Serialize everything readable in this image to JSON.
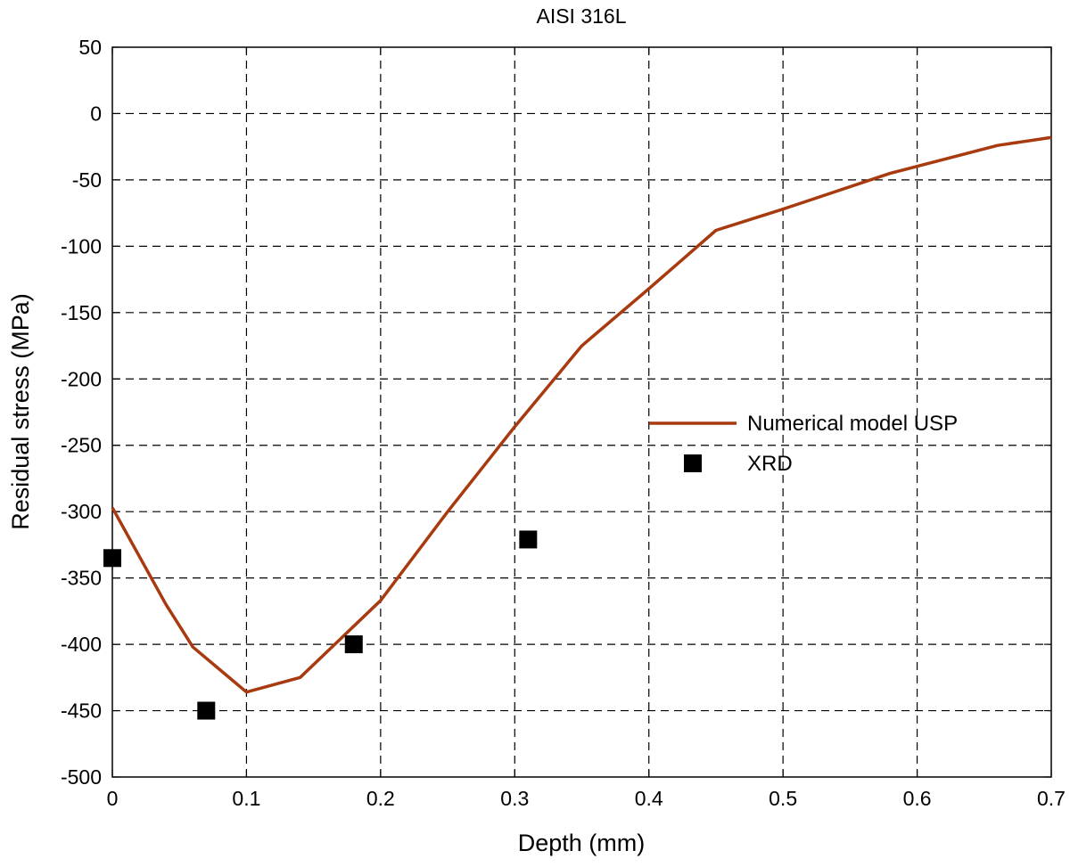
{
  "chart_data": {
    "type": "line",
    "title": "AISI 316L",
    "xlabel": "Depth (mm)",
    "ylabel": "Residual stress (MPa)",
    "xlim": [
      0,
      0.7
    ],
    "ylim": [
      -500,
      50
    ],
    "x_ticks": [
      0,
      0.1,
      0.2,
      0.3,
      0.4,
      0.5,
      0.6,
      0.7
    ],
    "x_tick_labels": [
      "0",
      "0.1",
      "0.2",
      "0.3",
      "0.4",
      "0.5",
      "0.6",
      "0.7"
    ],
    "y_ticks": [
      50,
      0,
      -50,
      -100,
      -150,
      -200,
      -250,
      -300,
      -350,
      -400,
      -450,
      -500
    ],
    "y_tick_labels": [
      "50",
      "0",
      "-50",
      "-100",
      "-150",
      "-200",
      "-250",
      "-300",
      "-350",
      "-400",
      "-450",
      "-500"
    ],
    "grid": true,
    "grid_style": "dashed",
    "legend_position": "right",
    "series": [
      {
        "name": "Numerical model USP",
        "kind": "line",
        "color": "#a83a0f",
        "x": [
          0,
          0.04,
          0.06,
          0.1,
          0.14,
          0.2,
          0.25,
          0.3,
          0.35,
          0.4,
          0.45,
          0.5,
          0.58,
          0.66,
          0.7
        ],
        "y": [
          -297,
          -370,
          -402,
          -436,
          -425,
          -367,
          -300,
          -236,
          -175,
          -132,
          -88,
          -72,
          -45,
          -24,
          -18
        ]
      },
      {
        "name": "XRD",
        "kind": "scatter",
        "marker": "square",
        "color": "#000000",
        "x": [
          0,
          0.07,
          0.18,
          0.31
        ],
        "y": [
          -335,
          -450,
          -400,
          -321
        ]
      }
    ]
  }
}
